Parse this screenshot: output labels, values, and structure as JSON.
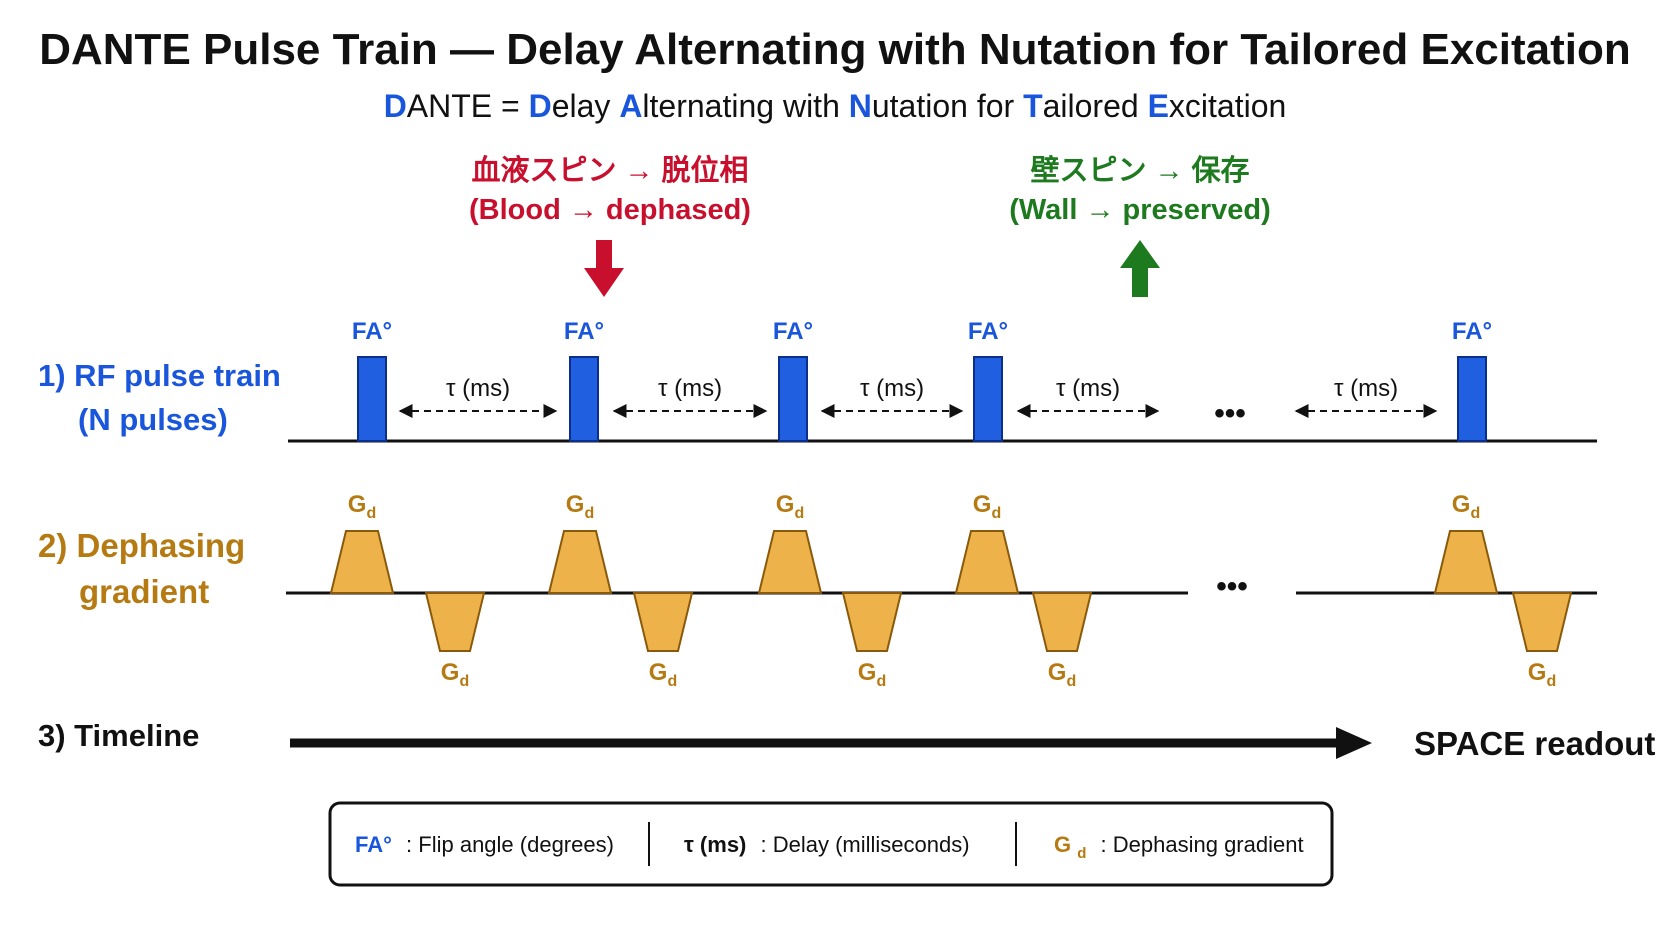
{
  "title": "DANTE Pulse Train — Delay Alternating with Nutation for Tailored Excitation",
  "acronym": {
    "parts": [
      {
        "text": "D",
        "hl": true
      },
      {
        "text": "ANTE = ",
        "hl": false
      },
      {
        "text": "D",
        "hl": true
      },
      {
        "text": "elay ",
        "hl": false
      },
      {
        "text": "A",
        "hl": true
      },
      {
        "text": "lternating with ",
        "hl": false
      },
      {
        "text": "N",
        "hl": true
      },
      {
        "text": "utation for ",
        "hl": false
      },
      {
        "text": "T",
        "hl": true
      },
      {
        "text": "ailored ",
        "hl": false
      },
      {
        "text": "E",
        "hl": true
      },
      {
        "text": "xcitation",
        "hl": false
      }
    ]
  },
  "blood_note": {
    "jp": "血液スピン → 脱位相",
    "en": "(Blood → dephased)",
    "arrow_icon": "arrow-down-icon"
  },
  "wall_note": {
    "jp": "壁スピン → 保存",
    "en": "(Wall → preserved)",
    "arrow_icon": "arrow-up-icon"
  },
  "rows": {
    "rf": {
      "line1": "1) RF pulse train",
      "line2": "(N pulses)"
    },
    "grad": {
      "line1": "2) Dephasing",
      "line2": "gradient"
    },
    "timeline": {
      "label": "3) Timeline",
      "end_label": "SPACE readout"
    }
  },
  "pulse_label": "FA°",
  "delay_label": "τ (ms)",
  "gradient_label": {
    "main": "G",
    "sub": "d"
  },
  "ellipsis": "•••",
  "legend": {
    "items": [
      {
        "key": "FA°",
        "key_sub": "",
        "desc": ": Flip angle (degrees)"
      },
      {
        "key": "τ (ms)",
        "key_sub": "",
        "desc": ": Delay (milliseconds)"
      },
      {
        "key": "G",
        "key_sub": "d",
        "desc": ": Dephasing gradient"
      }
    ]
  },
  "colors": {
    "blue": "#1a56db",
    "pulse_fill": "#1f5fe0",
    "pulse_stroke": "#0b2f8a",
    "gold": "#b57a12",
    "grad_fill": "#eeb24a",
    "grad_stroke": "#8a5a0c",
    "red": "#c8102e",
    "green": "#1e7a1e",
    "black": "#111111"
  }
}
